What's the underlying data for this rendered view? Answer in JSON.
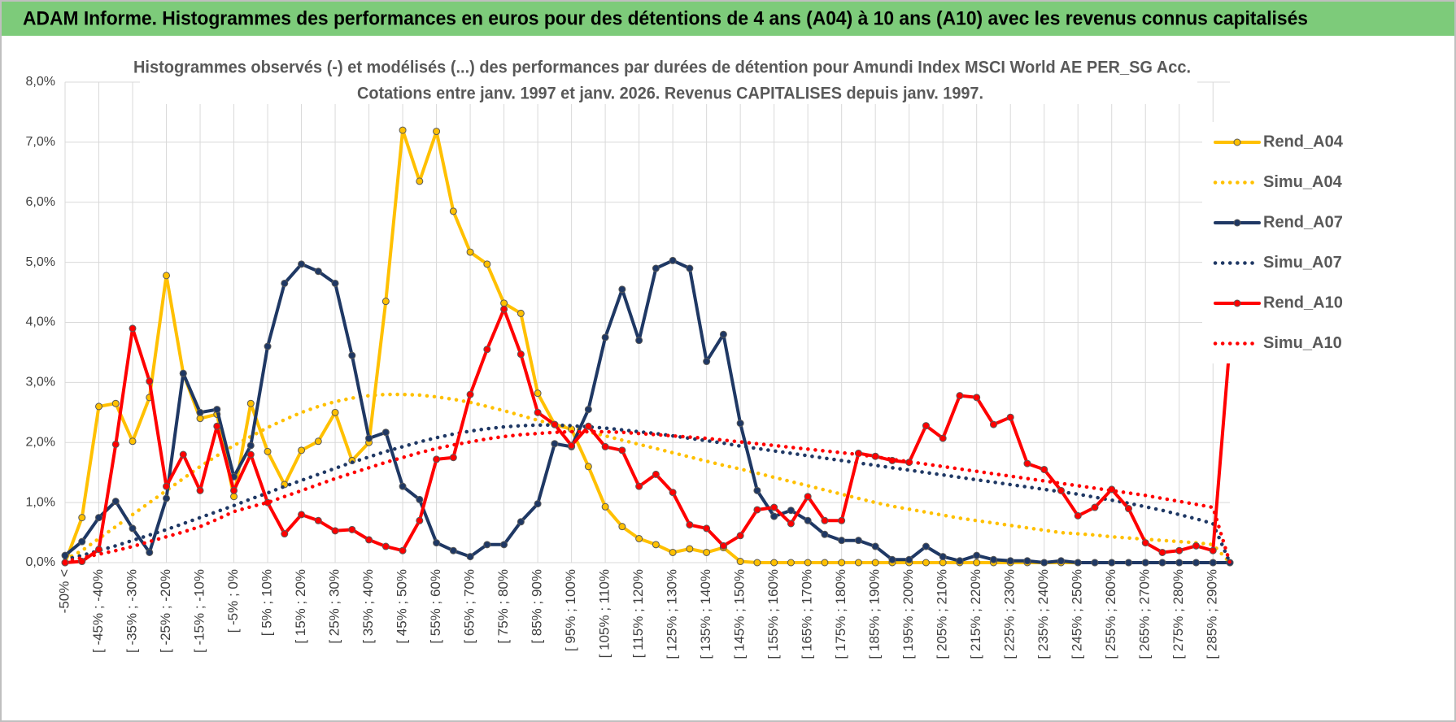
{
  "header": {
    "title": "ADAM Informe. Histogrammes des performances en euros pour des détentions de 4 ans (A04) à 10 ans (A10) avec les revenus connus capitalisés"
  },
  "chart_data": {
    "type": "line",
    "title": "Histogrammes observés (-) et modélisés (...) des performances par durées de détention pour Amundi Index MSCI World AE PER_SG Acc.",
    "subtitle": "Cotations entre janv. 1997 et janv. 2026. Revenus CAPITALISES depuis janv. 1997.",
    "categories": [
      "-50% <",
      null,
      "[ -45% ; -40%",
      null,
      "[ -35% ; -30%",
      null,
      "[ -25% ; -20%",
      null,
      "[ -15% ; -10%",
      null,
      "[ -5% ; 0%",
      null,
      "[ 5% ; 10%",
      null,
      "[ 15% ; 20%",
      null,
      "[ 25% ; 30%",
      null,
      "[ 35% ; 40%",
      null,
      "[ 45% ; 50%",
      null,
      "[ 55% ; 60%",
      null,
      "[ 65% ; 70%",
      null,
      "[ 75% ; 80%",
      null,
      "[ 85% ; 90%",
      null,
      "[ 95% ; 100%",
      null,
      "[ 105% ; 110%",
      null,
      "[ 115% ; 120%",
      null,
      "[ 125% ; 130%",
      null,
      "[ 135% ; 140%",
      null,
      "[ 145% ; 150%",
      null,
      "[ 155% ; 160%",
      null,
      "[ 165% ; 170%",
      null,
      "[ 175% ; 180%",
      null,
      "[ 185% ; 190%",
      null,
      "[ 195% ; 200%",
      null,
      "[ 205% ; 210%",
      null,
      "[ 215% ; 220%",
      null,
      "[ 225% ; 230%",
      null,
      "[ 235% ; 240%",
      null,
      "[ 245% ; 250%",
      null,
      "[ 255% ; 260%",
      null,
      "[ 265% ; 270%",
      null,
      "[ 275% ; 280%",
      null,
      "[ 285% ; 290%",
      null
    ],
    "series": [
      {
        "name": "Rend_A04",
        "color": "#ffc000",
        "line_style": "solid",
        "markers": true,
        "values": [
          0,
          0.75,
          2.6,
          2.65,
          2.02,
          2.75,
          4.78,
          3.15,
          2.4,
          2.47,
          1.1,
          2.65,
          1.85,
          1.3,
          1.87,
          2.02,
          2.5,
          1.7,
          2.0,
          4.35,
          7.2,
          6.35,
          7.18,
          5.85,
          5.17,
          4.97,
          4.32,
          4.15,
          2.82,
          2.3,
          2.22,
          1.6,
          0.93,
          0.6,
          0.4,
          0.3,
          0.17,
          0.23,
          0.17,
          0.25,
          0.02,
          0,
          0,
          0,
          0,
          0,
          0,
          0,
          0,
          0,
          0,
          0,
          0,
          0,
          0,
          0,
          0,
          0,
          0,
          0,
          0,
          0,
          0,
          0,
          0,
          0,
          0,
          0,
          0,
          0
        ]
      },
      {
        "name": "Simu_A04",
        "color": "#ffc000",
        "line_style": "dotted",
        "markers": false,
        "values": [
          0.05,
          0.2,
          0.4,
          0.6,
          0.8,
          1.0,
          1.2,
          1.4,
          1.6,
          1.78,
          1.95,
          2.1,
          2.25,
          2.38,
          2.5,
          2.6,
          2.68,
          2.74,
          2.78,
          2.8,
          2.8,
          2.79,
          2.76,
          2.72,
          2.67,
          2.6,
          2.53,
          2.45,
          2.37,
          2.3,
          2.25,
          2.18,
          2.11,
          2.04,
          1.97,
          1.9,
          1.83,
          1.76,
          1.69,
          1.62,
          1.56,
          1.49,
          1.42,
          1.35,
          1.28,
          1.21,
          1.14,
          1.07,
          1.0,
          0.94,
          0.89,
          0.84,
          0.79,
          0.74,
          0.7,
          0.66,
          0.62,
          0.58,
          0.54,
          0.5,
          0.48,
          0.46,
          0.43,
          0.41,
          0.39,
          0.37,
          0.35,
          0.33,
          0.3,
          0
        ]
      },
      {
        "name": "Rend_A07",
        "color": "#1f3864",
        "line_style": "solid",
        "markers": true,
        "values": [
          0.12,
          0.35,
          0.75,
          1.02,
          0.57,
          0.17,
          1.07,
          3.15,
          2.5,
          2.55,
          1.43,
          1.95,
          3.6,
          4.65,
          4.97,
          4.85,
          4.65,
          3.45,
          2.07,
          2.17,
          1.27,
          1.05,
          0.33,
          0.2,
          0.1,
          0.3,
          0.3,
          0.68,
          0.98,
          1.98,
          1.93,
          2.55,
          3.75,
          4.55,
          3.7,
          4.9,
          5.03,
          4.9,
          3.35,
          3.8,
          2.32,
          1.2,
          0.77,
          0.87,
          0.7,
          0.47,
          0.37,
          0.37,
          0.27,
          0.05,
          0.05,
          0.27,
          0.1,
          0.03,
          0.12,
          0.05,
          0.03,
          0.03,
          0,
          0.03,
          0,
          0,
          0,
          0,
          0,
          0,
          0,
          0,
          0,
          0
        ]
      },
      {
        "name": "Simu_A07",
        "color": "#1f3864",
        "line_style": "dotted",
        "markers": false,
        "values": [
          0.05,
          0.12,
          0.2,
          0.28,
          0.37,
          0.46,
          0.55,
          0.65,
          0.75,
          0.85,
          0.95,
          1.06,
          1.16,
          1.27,
          1.37,
          1.47,
          1.57,
          1.67,
          1.76,
          1.85,
          1.93,
          2.01,
          2.08,
          2.14,
          2.19,
          2.23,
          2.26,
          2.28,
          2.29,
          2.29,
          2.28,
          2.26,
          2.24,
          2.21,
          2.18,
          2.15,
          2.11,
          2.07,
          2.03,
          1.99,
          1.94,
          1.9,
          1.86,
          1.82,
          1.78,
          1.74,
          1.7,
          1.66,
          1.62,
          1.58,
          1.54,
          1.5,
          1.46,
          1.42,
          1.38,
          1.34,
          1.3,
          1.26,
          1.22,
          1.18,
          1.14,
          1.09,
          1.04,
          0.99,
          0.93,
          0.87,
          0.8,
          0.73,
          0.65,
          0
        ]
      },
      {
        "name": "Rend_A10",
        "color": "#ff0000",
        "line_style": "solid",
        "markers": true,
        "values": [
          0,
          0.02,
          0.22,
          1.97,
          3.9,
          3.02,
          1.27,
          1.8,
          1.2,
          2.27,
          1.2,
          1.8,
          1.0,
          0.48,
          0.8,
          0.7,
          0.53,
          0.55,
          0.38,
          0.27,
          0.2,
          0.7,
          1.72,
          1.75,
          2.8,
          3.55,
          4.22,
          3.47,
          2.5,
          2.3,
          1.95,
          2.27,
          1.93,
          1.87,
          1.27,
          1.47,
          1.17,
          0.63,
          0.57,
          0.28,
          0.45,
          0.88,
          0.92,
          0.65,
          1.1,
          0.7,
          0.7,
          1.82,
          1.77,
          1.7,
          1.67,
          2.28,
          2.07,
          2.78,
          2.75,
          2.3,
          2.42,
          1.65,
          1.55,
          1.2,
          0.78,
          0.92,
          1.22,
          0.9,
          0.33,
          0.17,
          0.2,
          0.28,
          0.2,
          3.65
        ]
      },
      {
        "name": "Simu_A10",
        "color": "#ff0000",
        "line_style": "dotted",
        "markers": false,
        "values": [
          0.02,
          0.08,
          0.14,
          0.2,
          0.27,
          0.35,
          0.43,
          0.51,
          0.6,
          0.72,
          0.85,
          0.93,
          1.0,
          1.1,
          1.2,
          1.3,
          1.4,
          1.49,
          1.58,
          1.67,
          1.75,
          1.83,
          1.9,
          1.96,
          2.01,
          2.06,
          2.1,
          2.13,
          2.15,
          2.17,
          2.18,
          2.18,
          2.18,
          2.17,
          2.15,
          2.13,
          2.11,
          2.09,
          2.07,
          2.04,
          2.01,
          1.98,
          1.95,
          1.92,
          1.89,
          1.86,
          1.83,
          1.8,
          1.76,
          1.72,
          1.68,
          1.64,
          1.6,
          1.56,
          1.52,
          1.48,
          1.44,
          1.4,
          1.36,
          1.32,
          1.28,
          1.24,
          1.2,
          1.16,
          1.12,
          1.07,
          1.02,
          0.97,
          0.92,
          0
        ]
      }
    ],
    "ylim": [
      0,
      8
    ],
    "yticks": [
      {
        "value": 0,
        "label": "0,0%"
      },
      {
        "value": 1,
        "label": "1,0%"
      },
      {
        "value": 2,
        "label": "2,0%"
      },
      {
        "value": 3,
        "label": "3,0%"
      },
      {
        "value": 4,
        "label": "4,0%"
      },
      {
        "value": 5,
        "label": "5,0%"
      },
      {
        "value": 6,
        "label": "6,0%"
      },
      {
        "value": 7,
        "label": "7,0%"
      },
      {
        "value": 8,
        "label": "8,0%"
      }
    ],
    "grid": true,
    "legend": "right"
  }
}
